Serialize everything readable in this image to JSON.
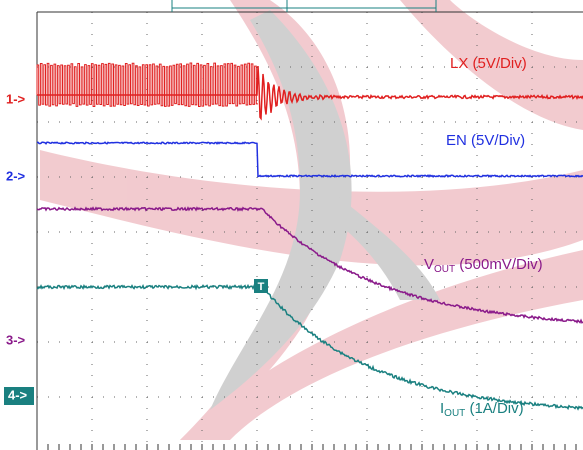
{
  "markers": [
    "1->",
    "2->",
    "3->",
    "4->"
  ],
  "labels": {
    "lx": "LX (5V/Div)",
    "en": "EN (5V/Div)",
    "vout": {
      "main": "V",
      "sub": "OUT",
      "rest": " (500mV/Div)"
    },
    "iout": {
      "main": "I",
      "sub": "OUT",
      "rest": " (1A/Div)"
    }
  },
  "trigger": "T"
}
